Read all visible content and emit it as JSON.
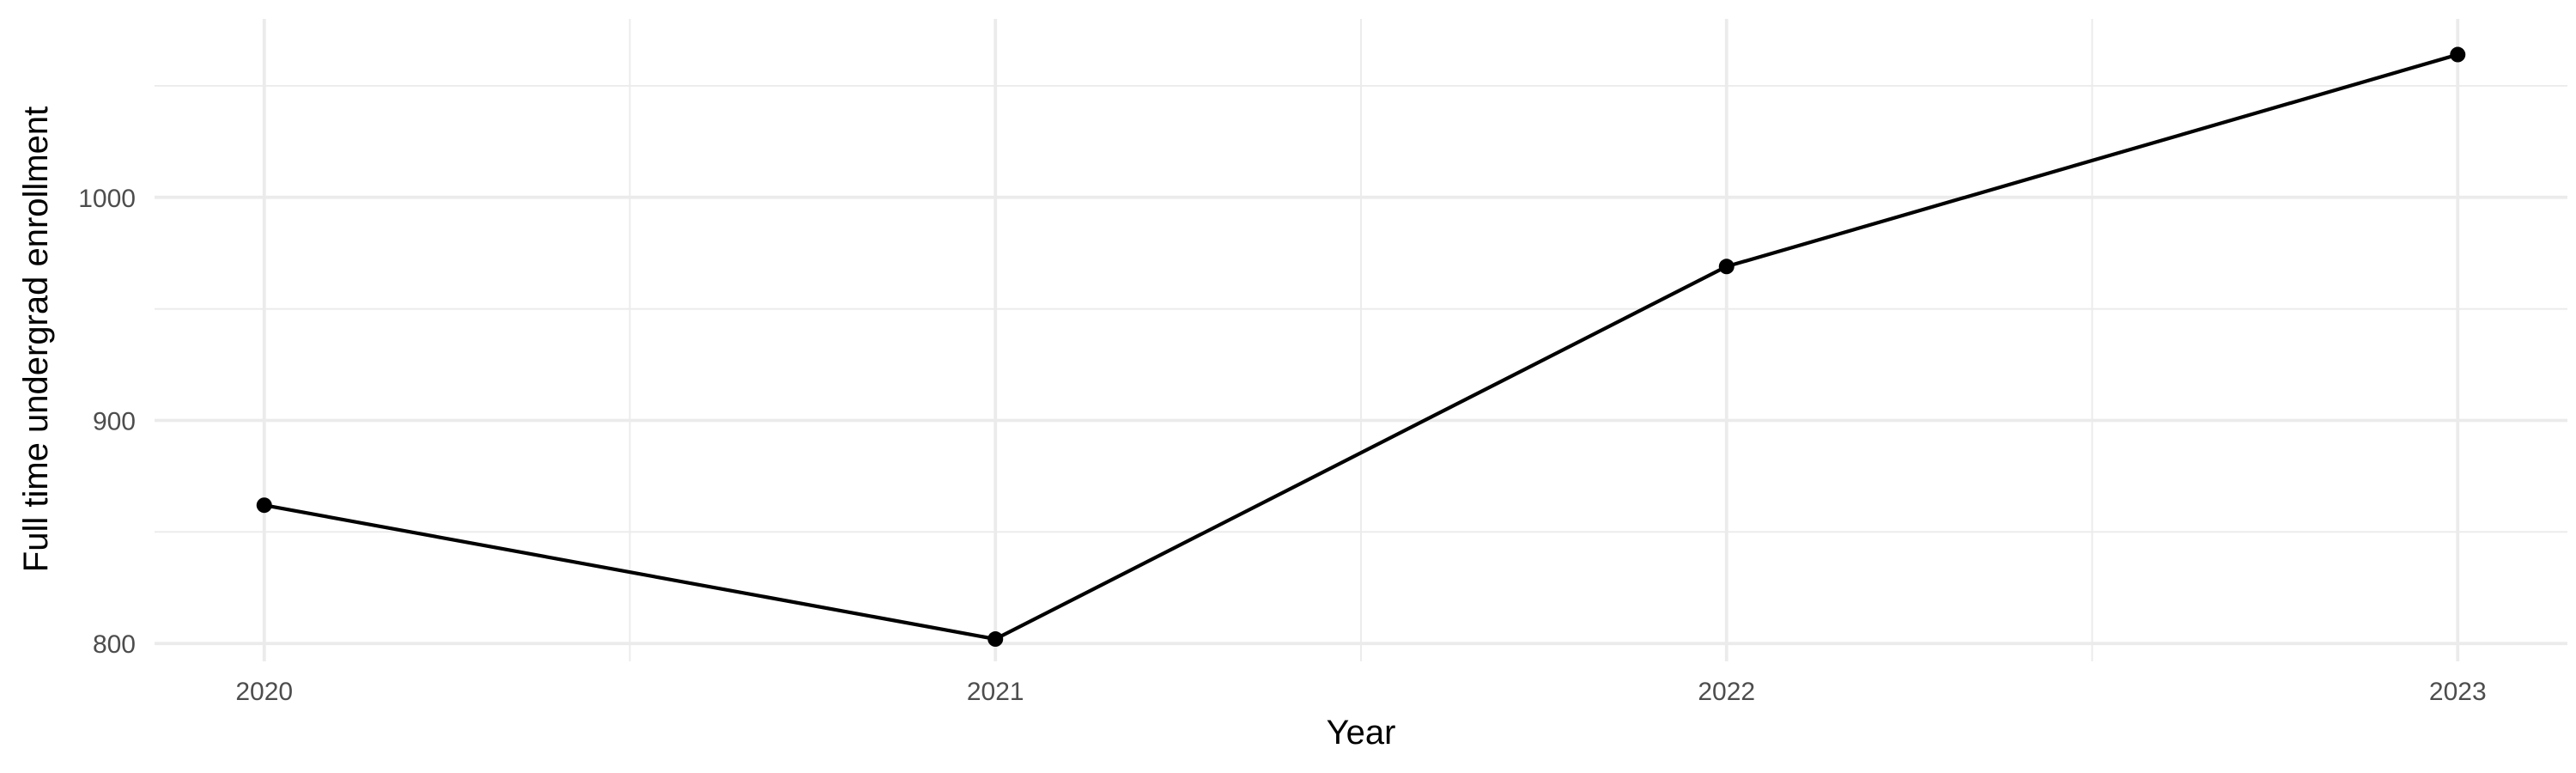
{
  "chart_data": {
    "type": "line",
    "title": "",
    "xlabel": "Year",
    "ylabel": "Full time undergrad enrollment",
    "x": [
      2020,
      2021,
      2022,
      2023
    ],
    "x_tick_labels": [
      "2020",
      "2021",
      "2022",
      "2023"
    ],
    "xlim": [
      2019.85,
      2023.15
    ],
    "y_ticks": [
      800,
      900,
      1000
    ],
    "y_tick_labels": [
      "800",
      "900",
      "1000"
    ],
    "ylim": [
      792,
      1080
    ],
    "series": [
      {
        "values": [
          862,
          802,
          969,
          1064
        ]
      }
    ],
    "grid": true,
    "legend": "none",
    "colors": {
      "line": "#000000",
      "point": "#000000",
      "grid": "#ebebeb",
      "tick_text": "#4d4d4d",
      "axis_title": "#000000"
    }
  }
}
